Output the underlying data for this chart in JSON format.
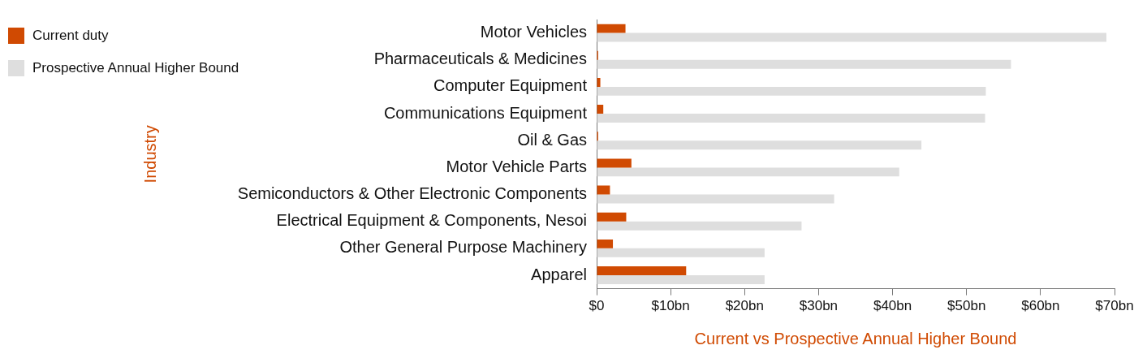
{
  "chart_data": {
    "type": "bar",
    "orientation": "horizontal",
    "xlabel": "Current vs Prospective Annual Higher Bound",
    "ylabel": "Industry",
    "categories": [
      "Motor Vehicles",
      "Pharmaceuticals & Medicines",
      "Computer Equipment",
      "Communications Equipment",
      "Oil & Gas",
      "Motor Vehicle Parts",
      "Semiconductors & Other Electronic Components",
      "Electrical Equipment & Components, Nesoi",
      "Other General Purpose Machinery",
      "Apparel"
    ],
    "series": [
      {
        "name": "Current duty",
        "color": "#d04a02",
        "values": [
          3.9,
          0.2,
          0.5,
          0.9,
          0.2,
          4.7,
          1.8,
          4.0,
          2.2,
          12.1
        ]
      },
      {
        "name": "Prospective Annual Higher Bound",
        "color": "#dedede",
        "values": [
          68.9,
          56.0,
          52.6,
          52.5,
          43.9,
          40.9,
          32.1,
          27.7,
          22.7,
          22.7
        ]
      }
    ],
    "xlim": [
      0,
      70
    ],
    "xticks": [
      {
        "value": 0,
        "label": "$0"
      },
      {
        "value": 10,
        "label": "$10bn"
      },
      {
        "value": 20,
        "label": "$20bn"
      },
      {
        "value": 30,
        "label": "$30bn"
      },
      {
        "value": 40,
        "label": "$40bn"
      },
      {
        "value": 50,
        "label": "$50bn"
      },
      {
        "value": 60,
        "label": "$60bn"
      },
      {
        "value": 70,
        "label": "$70bn"
      }
    ],
    "grid": false,
    "legend": "top left"
  }
}
